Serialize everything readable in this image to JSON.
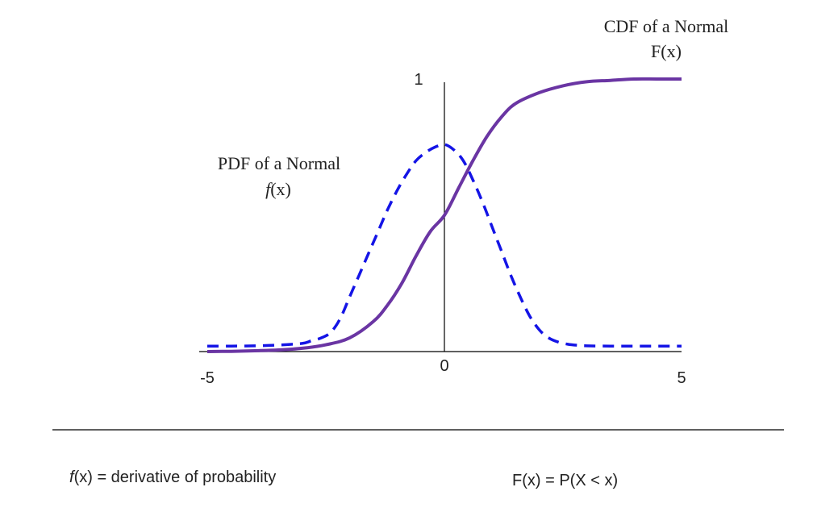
{
  "chart_data": {
    "type": "line",
    "xlim": [
      -5,
      5
    ],
    "ylim": [
      0,
      1
    ],
    "x_ticks": [
      "-5",
      "0",
      "5"
    ],
    "y_ticks": [
      "1"
    ],
    "grid": false,
    "series": [
      {
        "name": "PDF of a Normal",
        "symbol": "f(x)",
        "color": "#1414e6",
        "style": "dashed",
        "x": [
          -5,
          -4.5,
          -4,
          -3.5,
          -3,
          -2.8,
          -2.6,
          -2.4,
          -2.2,
          -2,
          -1.8,
          -1.6,
          -1.4,
          -1.2,
          -1,
          -0.8,
          -0.6,
          -0.4,
          -0.2,
          0,
          0.2,
          0.4,
          0.6,
          0.8,
          1,
          1.2,
          1.4,
          1.6,
          1.8,
          2,
          2.2,
          2.4,
          2.6,
          2.8,
          3,
          3.5,
          4,
          4.5,
          5
        ],
        "y": [
          0.02,
          0.02,
          0.021,
          0.024,
          0.03,
          0.04,
          0.05,
          0.07,
          0.12,
          0.2,
          0.28,
          0.36,
          0.44,
          0.52,
          0.59,
          0.65,
          0.7,
          0.73,
          0.75,
          0.76,
          0.74,
          0.7,
          0.63,
          0.55,
          0.46,
          0.37,
          0.28,
          0.2,
          0.13,
          0.08,
          0.05,
          0.035,
          0.027,
          0.023,
          0.021,
          0.02,
          0.02,
          0.02,
          0.02
        ]
      },
      {
        "name": "CDF of a Normal",
        "symbol": "F(x)",
        "color": "#6a35a3",
        "style": "solid",
        "x": [
          -5,
          -4.5,
          -4,
          -3.5,
          -3,
          -2.5,
          -2,
          -1.5,
          -1.2,
          -0.9,
          -0.6,
          -0.3,
          0,
          0.3,
          0.6,
          0.9,
          1.2,
          1.5,
          2,
          2.5,
          3,
          3.5,
          4,
          4.5,
          5
        ],
        "y": [
          0.0,
          0.001,
          0.003,
          0.006,
          0.012,
          0.025,
          0.05,
          0.11,
          0.17,
          0.25,
          0.35,
          0.44,
          0.5,
          0.6,
          0.7,
          0.79,
          0.86,
          0.91,
          0.95,
          0.975,
          0.99,
          0.995,
          1.0,
          1.0,
          1.0
        ]
      }
    ]
  },
  "annotations": {
    "pdf_line1": "PDF of a Normal",
    "pdf_line2_prefix": "f",
    "pdf_line2_suffix": "(x)",
    "cdf_line1": "CDF of a Normal",
    "cdf_line2": "F(x)"
  },
  "footer": {
    "left_prefix": "f",
    "left_suffix": "(x) = derivative of probability",
    "right": "F(x) = P(X < x)"
  }
}
